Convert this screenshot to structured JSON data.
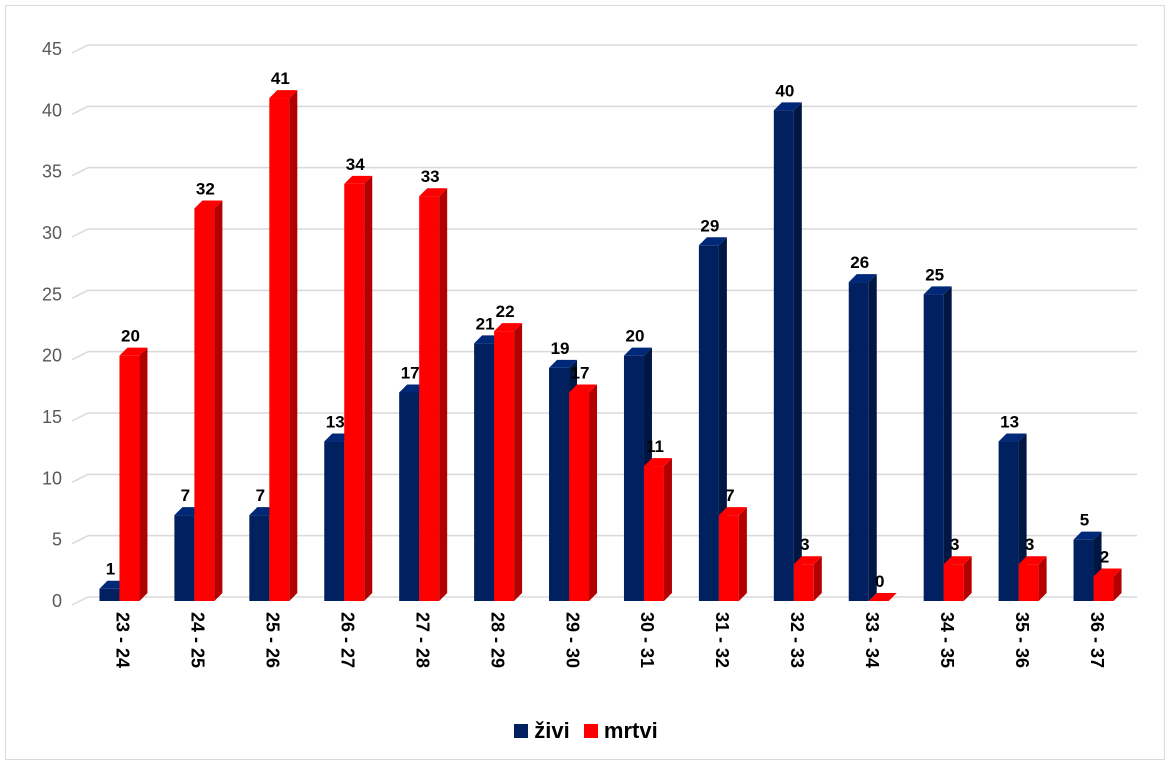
{
  "chart_data": {
    "type": "bar",
    "title": "",
    "xlabel": "",
    "ylabel": "",
    "ylim": [
      0,
      45
    ],
    "yticks": [
      0,
      5,
      10,
      15,
      20,
      25,
      30,
      35,
      40,
      45
    ],
    "grid": true,
    "legend_position": "bottom",
    "categories": [
      "23 - 24",
      "24 - 25",
      "25 - 26",
      "26 - 27",
      "27 - 28",
      "28 - 29",
      "29 - 30",
      "30 - 31",
      "31 - 32",
      "32 - 33",
      "33 - 34",
      "34 - 35",
      "35 - 36",
      "36 - 37"
    ],
    "series": [
      {
        "name": "živi",
        "color": "#002060",
        "values": [
          1,
          7,
          7,
          13,
          17,
          21,
          19,
          20,
          29,
          40,
          26,
          25,
          13,
          5
        ]
      },
      {
        "name": "mrtvi",
        "color": "#ff0000",
        "values": [
          20,
          32,
          41,
          34,
          33,
          22,
          17,
          11,
          7,
          3,
          0,
          3,
          3,
          2
        ]
      }
    ]
  }
}
